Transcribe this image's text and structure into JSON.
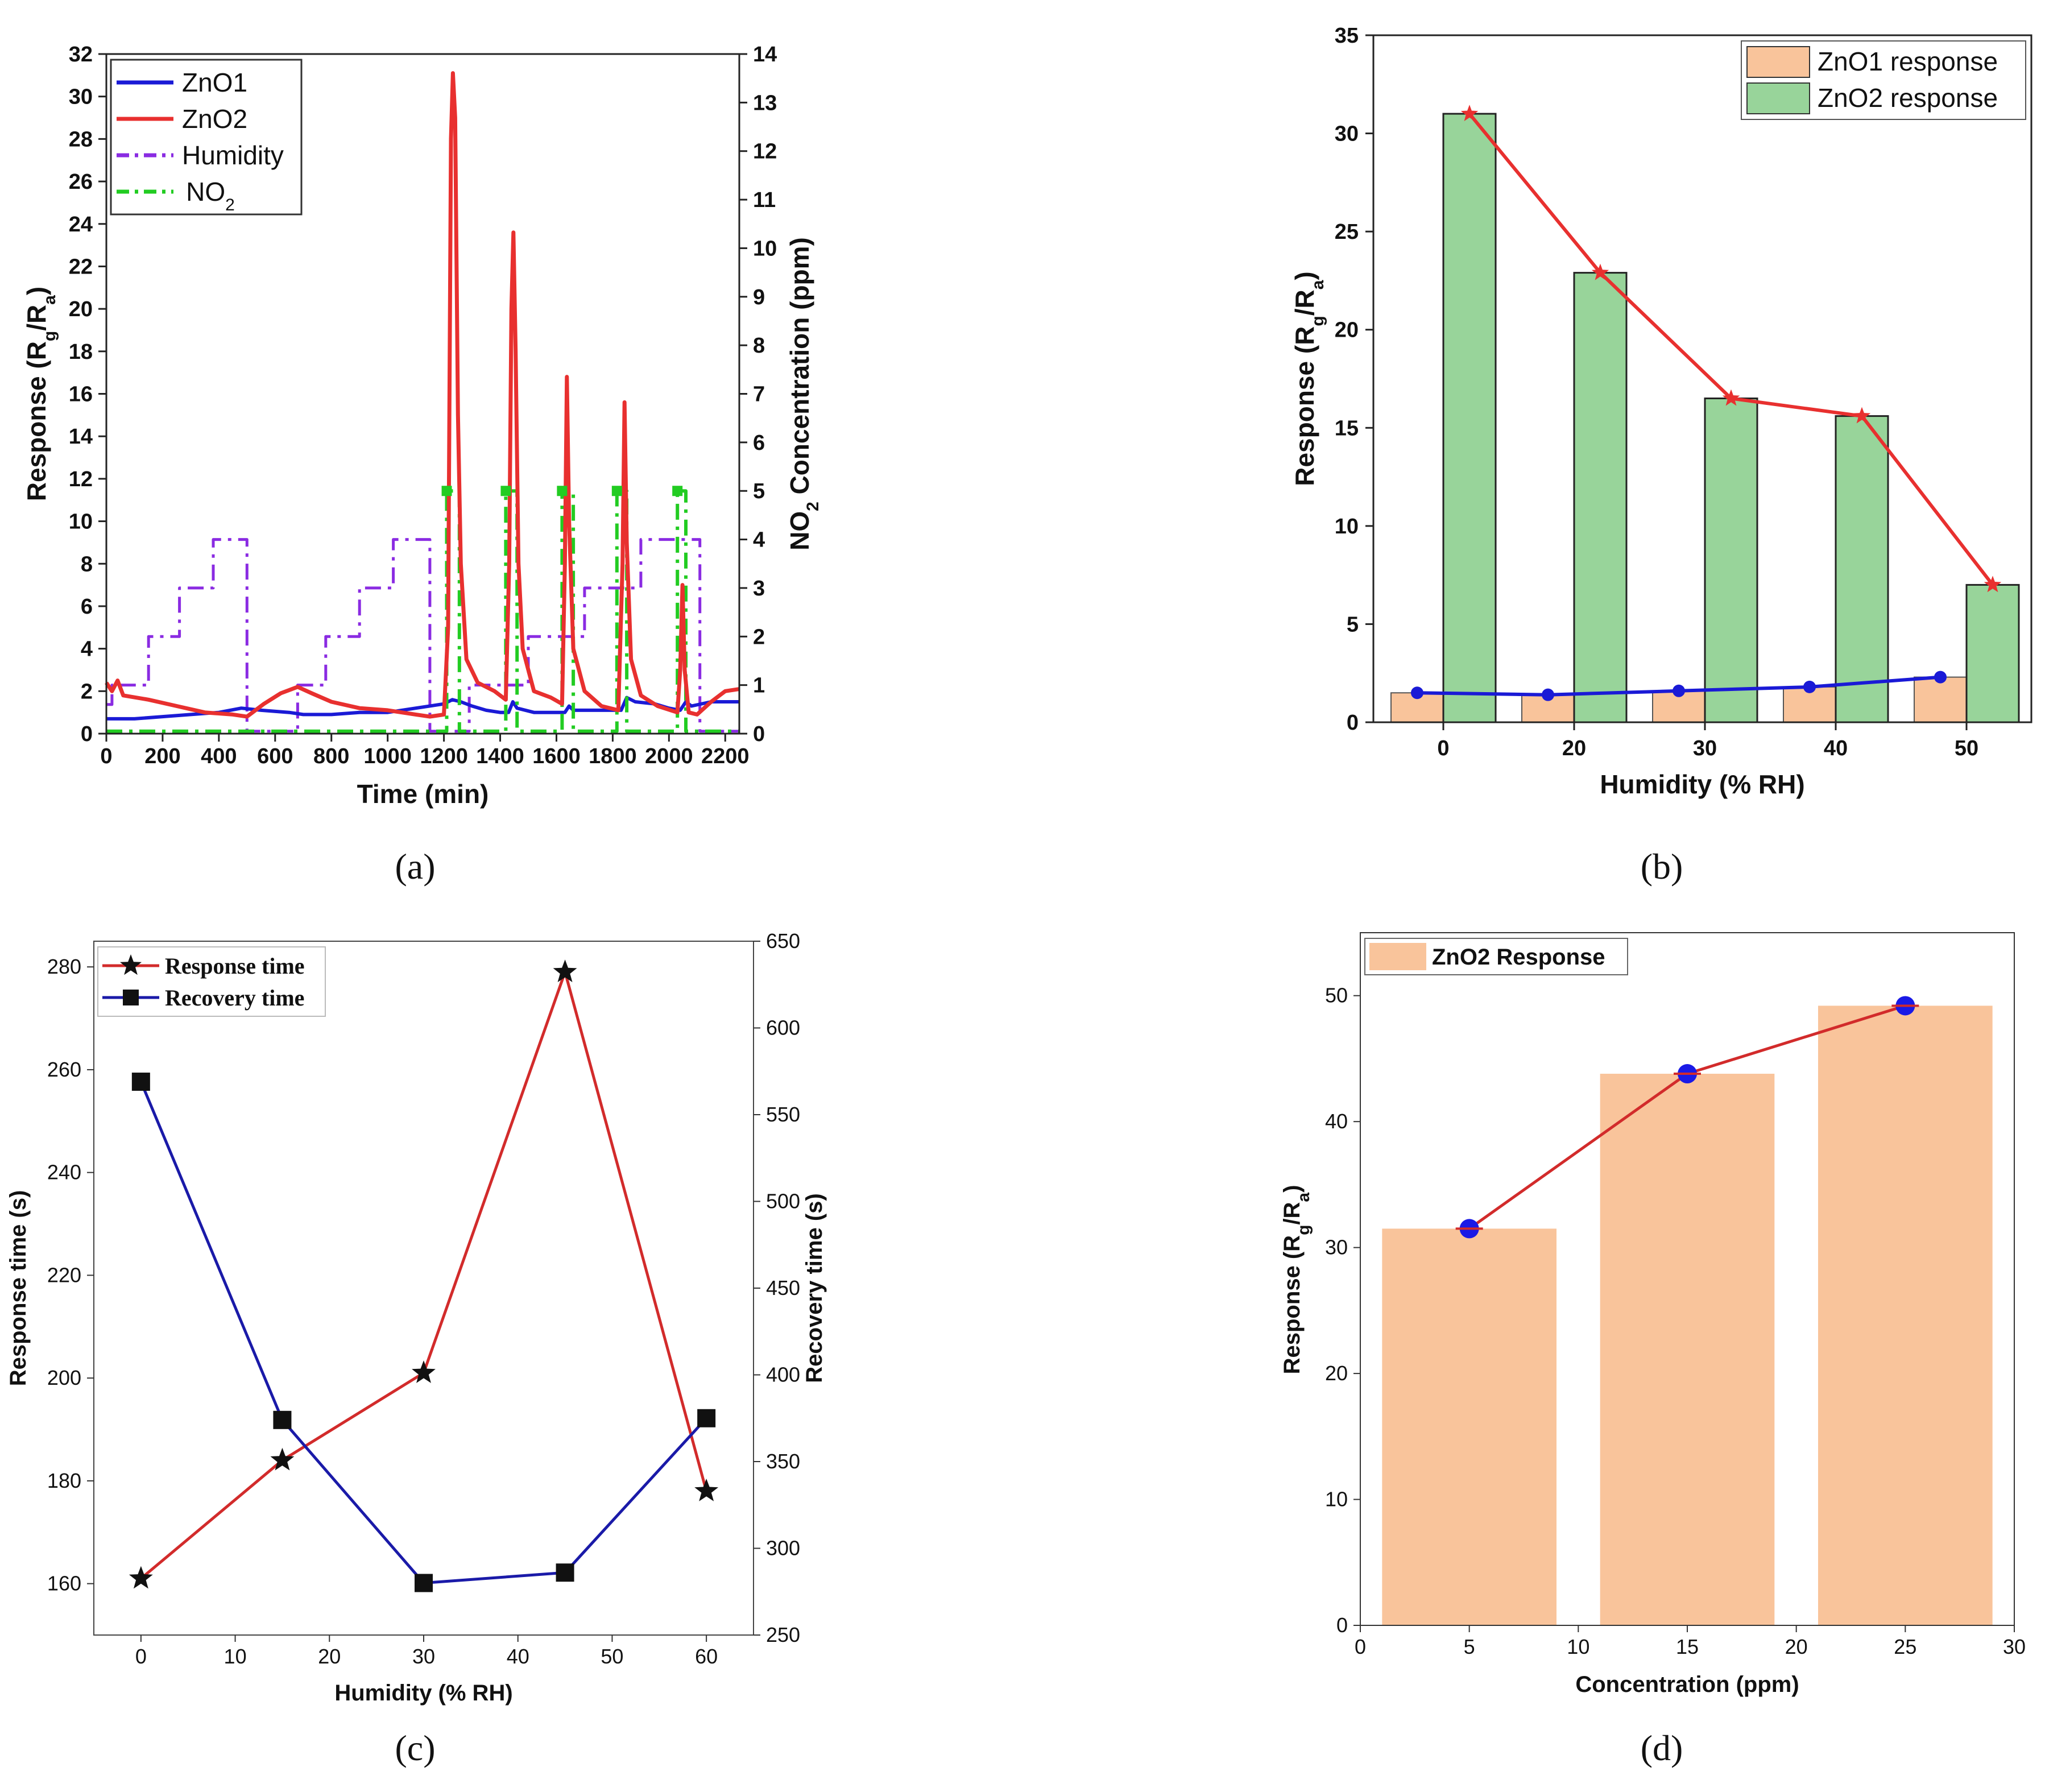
{
  "chart_data": [
    {
      "id": "a",
      "type": "line",
      "panel_label": "(a)",
      "xlabel": "Time (min)",
      "ylabel": "Response (Rg/Ra)",
      "ylabel_main": "Response (R",
      "ylabel_sub1": "g",
      "ylabel_mid": "/R",
      "ylabel_sub2": "a",
      "ylabel_end": ")",
      "y2label_pre": "NO",
      "y2label_sub": "2",
      "y2label_post": " Concentration (ppm)",
      "xlim": [
        0,
        2250
      ],
      "ylim": [
        0,
        32
      ],
      "y2lim": [
        0,
        14
      ],
      "xticks": [
        0,
        200,
        400,
        600,
        800,
        1000,
        1200,
        1400,
        1600,
        1800,
        2000,
        2200
      ],
      "yticks": [
        0,
        2,
        4,
        6,
        8,
        10,
        12,
        14,
        16,
        18,
        20,
        22,
        24,
        26,
        28,
        30,
        32
      ],
      "y2ticks": [
        0,
        1,
        2,
        3,
        4,
        5,
        6,
        7,
        8,
        9,
        10,
        11,
        12,
        13,
        14
      ],
      "legend": [
        {
          "label": "ZnO1",
          "color": "#1a1ad6",
          "style": "solid"
        },
        {
          "label": "ZnO2",
          "color": "#e8302f",
          "style": "solid"
        },
        {
          "label": "Humidity",
          "color": "#8a2be2",
          "style": "dashdot"
        },
        {
          "label": "NO",
          "sub": "2",
          "color": "#22cc22",
          "style": "dashdot"
        }
      ],
      "series": [
        {
          "name": "ZnO1",
          "axis": "left",
          "points": [
            [
              0,
              0.7
            ],
            [
              100,
              0.7
            ],
            [
              200,
              0.8
            ],
            [
              300,
              0.9
            ],
            [
              400,
              1.0
            ],
            [
              480,
              1.2
            ],
            [
              550,
              1.1
            ],
            [
              650,
              1.0
            ],
            [
              700,
              0.9
            ],
            [
              800,
              0.9
            ],
            [
              900,
              1.0
            ],
            [
              1000,
              1.0
            ],
            [
              1100,
              1.2
            ],
            [
              1200,
              1.4
            ],
            [
              1230,
              1.6
            ],
            [
              1260,
              1.5
            ],
            [
              1300,
              1.3
            ],
            [
              1350,
              1.1
            ],
            [
              1400,
              1.0
            ],
            [
              1430,
              1.0
            ],
            [
              1445,
              1.5
            ],
            [
              1460,
              1.2
            ],
            [
              1520,
              1.0
            ],
            [
              1600,
              1.0
            ],
            [
              1630,
              1.0
            ],
            [
              1645,
              1.3
            ],
            [
              1660,
              1.1
            ],
            [
              1750,
              1.1
            ],
            [
              1830,
              1.1
            ],
            [
              1850,
              1.7
            ],
            [
              1880,
              1.5
            ],
            [
              1950,
              1.4
            ],
            [
              2000,
              1.2
            ],
            [
              2040,
              1.1
            ],
            [
              2060,
              1.5
            ],
            [
              2080,
              1.3
            ],
            [
              2150,
              1.5
            ],
            [
              2250,
              1.5
            ]
          ]
        },
        {
          "name": "ZnO2",
          "axis": "left",
          "points": [
            [
              0,
              2.4
            ],
            [
              20,
              2.0
            ],
            [
              40,
              2.5
            ],
            [
              60,
              1.8
            ],
            [
              150,
              1.6
            ],
            [
              250,
              1.3
            ],
            [
              350,
              1.0
            ],
            [
              450,
              0.9
            ],
            [
              500,
              0.8
            ],
            [
              560,
              1.4
            ],
            [
              620,
              1.9
            ],
            [
              680,
              2.2
            ],
            [
              730,
              1.9
            ],
            [
              800,
              1.5
            ],
            [
              900,
              1.2
            ],
            [
              1000,
              1.1
            ],
            [
              1100,
              0.9
            ],
            [
              1150,
              0.8
            ],
            [
              1200,
              0.9
            ],
            [
              1215,
              5.0
            ],
            [
              1225,
              28.0
            ],
            [
              1232,
              31.1
            ],
            [
              1240,
              29.0
            ],
            [
              1250,
              15.0
            ],
            [
              1260,
              8.0
            ],
            [
              1280,
              3.5
            ],
            [
              1320,
              2.4
            ],
            [
              1380,
              2.0
            ],
            [
              1420,
              1.6
            ],
            [
              1432,
              8.0
            ],
            [
              1440,
              20.0
            ],
            [
              1447,
              23.6
            ],
            [
              1455,
              18.0
            ],
            [
              1465,
              8.0
            ],
            [
              1480,
              4.0
            ],
            [
              1520,
              2.0
            ],
            [
              1580,
              1.7
            ],
            [
              1620,
              1.4
            ],
            [
              1630,
              8.0
            ],
            [
              1637,
              16.8
            ],
            [
              1645,
              10.0
            ],
            [
              1660,
              4.0
            ],
            [
              1700,
              2.0
            ],
            [
              1760,
              1.3
            ],
            [
              1820,
              1.1
            ],
            [
              1835,
              8.0
            ],
            [
              1842,
              15.6
            ],
            [
              1850,
              9.0
            ],
            [
              1865,
              3.5
            ],
            [
              1900,
              1.8
            ],
            [
              1960,
              1.3
            ],
            [
              2030,
              1.0
            ],
            [
              2040,
              3.0
            ],
            [
              2048,
              7.0
            ],
            [
              2056,
              3.0
            ],
            [
              2070,
              1.0
            ],
            [
              2100,
              0.9
            ],
            [
              2150,
              1.5
            ],
            [
              2200,
              2.0
            ],
            [
              2250,
              2.1
            ]
          ]
        },
        {
          "name": "Humidity",
          "axis": "right",
          "points": [
            [
              0,
              0.6
            ],
            [
              20,
              0.6
            ],
            [
              20,
              1.0
            ],
            [
              150,
              1.0
            ],
            [
              150,
              2.0
            ],
            [
              260,
              2.0
            ],
            [
              260,
              3.0
            ],
            [
              380,
              3.0
            ],
            [
              380,
              4.0
            ],
            [
              500,
              4.0
            ],
            [
              500,
              0.05
            ],
            [
              680,
              0.05
            ],
            [
              680,
              1.0
            ],
            [
              780,
              1.0
            ],
            [
              780,
              2.0
            ],
            [
              900,
              2.0
            ],
            [
              900,
              3.0
            ],
            [
              1020,
              3.0
            ],
            [
              1020,
              4.0
            ],
            [
              1150,
              4.0
            ],
            [
              1150,
              0.05
            ],
            [
              1290,
              0.05
            ],
            [
              1290,
              1.0
            ],
            [
              1500,
              1.0
            ],
            [
              1500,
              2.0
            ],
            [
              1700,
              2.0
            ],
            [
              1700,
              3.0
            ],
            [
              1900,
              3.0
            ],
            [
              1900,
              4.0
            ],
            [
              2110,
              4.0
            ],
            [
              2110,
              0.05
            ],
            [
              2250,
              0.05
            ]
          ]
        },
        {
          "name": "NO2",
          "axis": "right",
          "points": [
            [
              0,
              0.05
            ],
            [
              1210,
              0.05
            ],
            [
              1210,
              5.0
            ],
            [
              1255,
              5.0
            ],
            [
              1255,
              0.05
            ],
            [
              1420,
              0.05
            ],
            [
              1420,
              5.0
            ],
            [
              1460,
              5.0
            ],
            [
              1460,
              0.05
            ],
            [
              1620,
              0.05
            ],
            [
              1620,
              5.0
            ],
            [
              1660,
              5.0
            ],
            [
              1660,
              0.05
            ],
            [
              1815,
              0.05
            ],
            [
              1815,
              5.0
            ],
            [
              1850,
              5.0
            ],
            [
              1850,
              0.05
            ],
            [
              2030,
              0.05
            ],
            [
              2030,
              5.0
            ],
            [
              2060,
              5.0
            ],
            [
              2060,
              0.05
            ],
            [
              2250,
              0.05
            ]
          ]
        }
      ]
    },
    {
      "id": "b",
      "type": "bar",
      "panel_label": "(b)",
      "xlabel": "Humidity (% RH)",
      "ylabel_main": "Response (R",
      "ylabel_sub1": "g",
      "ylabel_mid": "/R",
      "ylabel_sub2": "a",
      "ylabel_end": ")",
      "categories": [
        "0",
        "20",
        "30",
        "40",
        "50"
      ],
      "ylim": [
        0,
        35
      ],
      "yticks": [
        0,
        5,
        10,
        15,
        20,
        25,
        30,
        35
      ],
      "series": [
        {
          "name": "ZnO1 response",
          "color": "#f9c49b",
          "values": [
            1.5,
            1.4,
            1.6,
            1.8,
            2.3
          ]
        },
        {
          "name": "ZnO2 response",
          "color": "#98d49a",
          "values": [
            31.0,
            22.9,
            16.5,
            15.6,
            7.0
          ]
        }
      ],
      "line_colors": {
        "ZnO1": "#1a1ad6",
        "ZnO2": "#e8302f"
      }
    },
    {
      "id": "c",
      "type": "line",
      "panel_label": "(c)",
      "xlabel": "Humidity (% RH)",
      "ylabel": "Response time (s)",
      "y2label": "Recovery time (s)",
      "xlim": [
        -5,
        65
      ],
      "ylim": [
        150,
        285
      ],
      "y2lim": [
        250,
        650
      ],
      "xticks": [
        0,
        10,
        20,
        30,
        40,
        50,
        60
      ],
      "yticks": [
        160,
        180,
        200,
        220,
        240,
        260,
        280
      ],
      "y2ticks": [
        250,
        300,
        350,
        400,
        450,
        500,
        550,
        600,
        650
      ],
      "series": [
        {
          "name": "Response time",
          "axis": "left",
          "color": "#d22b2b",
          "marker": "star",
          "x": [
            0,
            15,
            30,
            45,
            60
          ],
          "values": [
            161,
            184,
            201,
            279,
            178
          ]
        },
        {
          "name": "Recovery time",
          "axis": "right",
          "color": "#1a1aa8",
          "marker": "square",
          "x": [
            0,
            15,
            30,
            45,
            60
          ],
          "values": [
            569,
            374,
            280,
            286,
            375
          ]
        }
      ]
    },
    {
      "id": "d",
      "type": "bar",
      "panel_label": "(d)",
      "xlabel": "Concentration (ppm)",
      "ylabel_main": "Response (R",
      "ylabel_sub1": "g",
      "ylabel_mid": "/R",
      "ylabel_sub2": "a",
      "ylabel_end": ")",
      "xlim": [
        0,
        30
      ],
      "ylim": [
        0,
        55
      ],
      "xticks": [
        0,
        5,
        10,
        15,
        20,
        25,
        30
      ],
      "yticks": [
        0,
        10,
        20,
        30,
        40,
        50
      ],
      "series": [
        {
          "name": "ZnO2 Response",
          "color": "#f9c49b",
          "x": [
            5,
            15,
            25
          ],
          "values": [
            31.5,
            43.8,
            49.2
          ]
        }
      ],
      "line_color": "#d22b2b",
      "marker_color": "#1a1ae6"
    }
  ]
}
